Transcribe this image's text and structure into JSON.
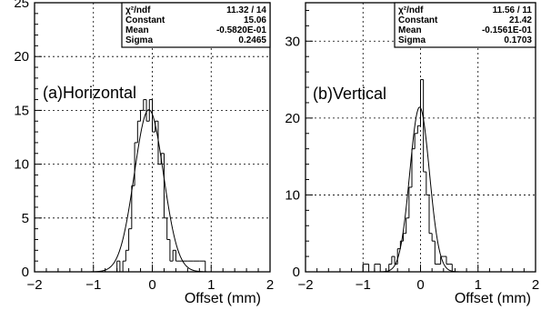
{
  "chart_data": [
    {
      "type": "histogram",
      "panel_label": "(a)Horizontal",
      "xlabel": "Offset (mm)",
      "xlim": [
        -2,
        2
      ],
      "ylim": [
        0,
        25
      ],
      "x_ticks": [
        "-2",
        "-1",
        "0",
        "1",
        "2"
      ],
      "y_ticks": [
        "0",
        "5",
        "10",
        "15",
        "20",
        "25"
      ],
      "y_tick_values": [
        0,
        5,
        10,
        15,
        20,
        25
      ],
      "grid": true,
      "bin_width": 0.05,
      "histogram": {
        "x": [
          -0.7,
          -0.6,
          -0.55,
          -0.5,
          -0.45,
          -0.4,
          -0.35,
          -0.3,
          -0.25,
          -0.2,
          -0.15,
          -0.1,
          -0.05,
          0.0,
          0.05,
          0.1,
          0.15,
          0.2,
          0.25,
          0.3,
          0.35,
          0.4,
          0.5,
          0.6,
          0.7,
          0.8,
          0.9
        ],
        "counts": [
          0,
          1,
          0,
          1,
          2,
          4,
          8,
          12,
          14,
          15,
          16,
          14,
          16,
          13,
          14,
          10,
          11,
          5,
          3,
          1,
          2,
          1,
          1,
          1,
          1,
          1,
          0
        ]
      },
      "fit": {
        "type": "gaussian",
        "constant": 15.06,
        "mean": -0.0582,
        "sigma": 0.2465
      },
      "stats_box": [
        {
          "label": "χ²/ndf",
          "value": "11.32   /   14"
        },
        {
          "label": "Constant",
          "value": "15.06"
        },
        {
          "label": "Mean",
          "value": "-0.5820E-01"
        },
        {
          "label": "Sigma",
          "value": "0.2465"
        }
      ]
    },
    {
      "type": "histogram",
      "panel_label": "(b)Vertical",
      "xlabel": "Offset (mm)",
      "xlim": [
        -2,
        2
      ],
      "ylim": [
        0,
        35
      ],
      "x_ticks": [
        "-2",
        "-1",
        "0",
        "1",
        "2"
      ],
      "y_ticks": [
        "0",
        "10",
        "20",
        "30"
      ],
      "y_tick_values": [
        0,
        10,
        20,
        30
      ],
      "grid": true,
      "bin_width": 0.05,
      "histogram": {
        "x": [
          -1.0,
          -0.9,
          -0.8,
          -0.7,
          -0.55,
          -0.5,
          -0.45,
          -0.4,
          -0.35,
          -0.3,
          -0.25,
          -0.2,
          -0.15,
          -0.1,
          -0.05,
          0.0,
          0.05,
          0.1,
          0.15,
          0.2,
          0.25,
          0.3,
          0.35,
          0.4,
          0.45,
          0.5,
          0.55
        ],
        "counts": [
          1,
          0,
          1,
          0,
          1,
          2,
          1,
          3,
          4,
          5,
          7,
          11,
          16,
          18,
          19,
          25,
          13,
          10,
          5,
          4,
          1,
          1,
          2,
          2,
          1,
          1,
          0
        ]
      },
      "fit": {
        "type": "gaussian",
        "constant": 21.42,
        "mean": -0.01561,
        "sigma": 0.1703
      },
      "stats_box": [
        {
          "label": "χ²/ndf",
          "value": "11.56   /   11"
        },
        {
          "label": "Constant",
          "value": "21.42"
        },
        {
          "label": "Mean",
          "value": "-0.1561E-01"
        },
        {
          "label": "Sigma",
          "value": "0.1703"
        }
      ]
    }
  ]
}
